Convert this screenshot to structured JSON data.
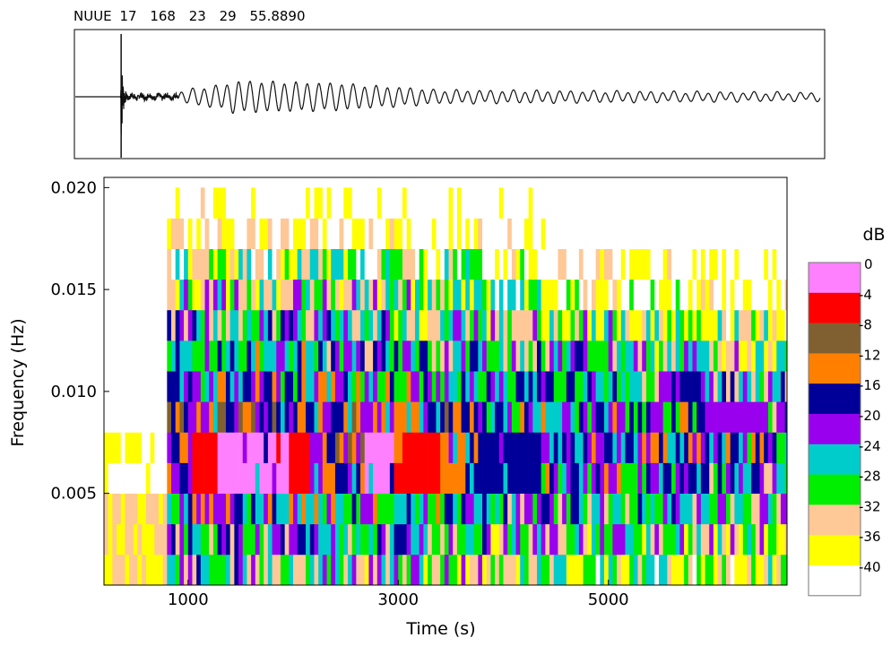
{
  "chart_data": [
    {
      "type": "line",
      "panel": "seismogram",
      "header": {
        "station": "NUUE",
        "day": "17",
        "v1": "168",
        "v2": "23",
        "v3": "29",
        "v4": "55.8890"
      },
      "event_marker_time": 600
    },
    {
      "type": "heatmap",
      "panel": "spectrogram",
      "xlabel": "Time (s)",
      "ylabel": "Frequency (Hz)",
      "xticks": [
        1000,
        3000,
        5000
      ],
      "yticks": [
        0.005,
        0.01,
        0.015,
        0.02
      ],
      "ytick_labels": [
        "0.005",
        "0.010",
        "0.015",
        "0.020"
      ],
      "xlim": [
        200,
        6700
      ],
      "ylim": [
        0.0005,
        0.0205
      ],
      "n_freq_rows": 13,
      "freq_bin_width": 0.0015,
      "time_bin_width": 40,
      "onset_time": 800,
      "colorbar": {
        "title": "dB",
        "levels": [
          0,
          -4,
          -8,
          -12,
          -16,
          -20,
          -24,
          -28,
          -32,
          -36,
          -40
        ],
        "level_labels": [
          "0",
          "-4",
          "-8",
          "-12",
          "-16",
          "-20",
          "-24",
          "-28",
          "-32",
          "-36",
          "-40"
        ],
        "colors": [
          "#ff80ff",
          "#ff0000",
          "#806030",
          "#ff8000",
          "#000099",
          "#9900ee",
          "#00cccc",
          "#00ee00",
          "#ffc896",
          "#ffff00",
          "#ffffff"
        ]
      },
      "dominant_segments": [
        {
          "freq": 0.0065,
          "t0": 1050,
          "t1": 1300,
          "level": -4
        },
        {
          "freq": 0.0065,
          "t0": 1300,
          "t1": 1950,
          "level": 0
        },
        {
          "freq": 0.0065,
          "t0": 1950,
          "t1": 2150,
          "level": -4
        },
        {
          "freq": 0.0065,
          "t0": 2700,
          "t1": 2950,
          "level": 0
        },
        {
          "freq": 0.0065,
          "t0": 2950,
          "t1": 3400,
          "level": -4
        },
        {
          "freq": 0.0065,
          "t0": 3400,
          "t1": 3650,
          "level": -12
        },
        {
          "freq": 0.0065,
          "t0": 3750,
          "t1": 4350,
          "level": -16
        },
        {
          "freq": 0.008,
          "t0": 1800,
          "t1": 2400,
          "level": 0
        },
        {
          "freq": 0.008,
          "t0": 2400,
          "t1": 2600,
          "level": -4
        },
        {
          "freq": 0.008,
          "t0": 3800,
          "t1": 4200,
          "level": -12
        },
        {
          "freq": 0.008,
          "t0": 5700,
          "t1": 6100,
          "level": -20
        },
        {
          "freq": 0.0095,
          "t0": 5900,
          "t1": 6500,
          "level": -20
        }
      ]
    }
  ]
}
